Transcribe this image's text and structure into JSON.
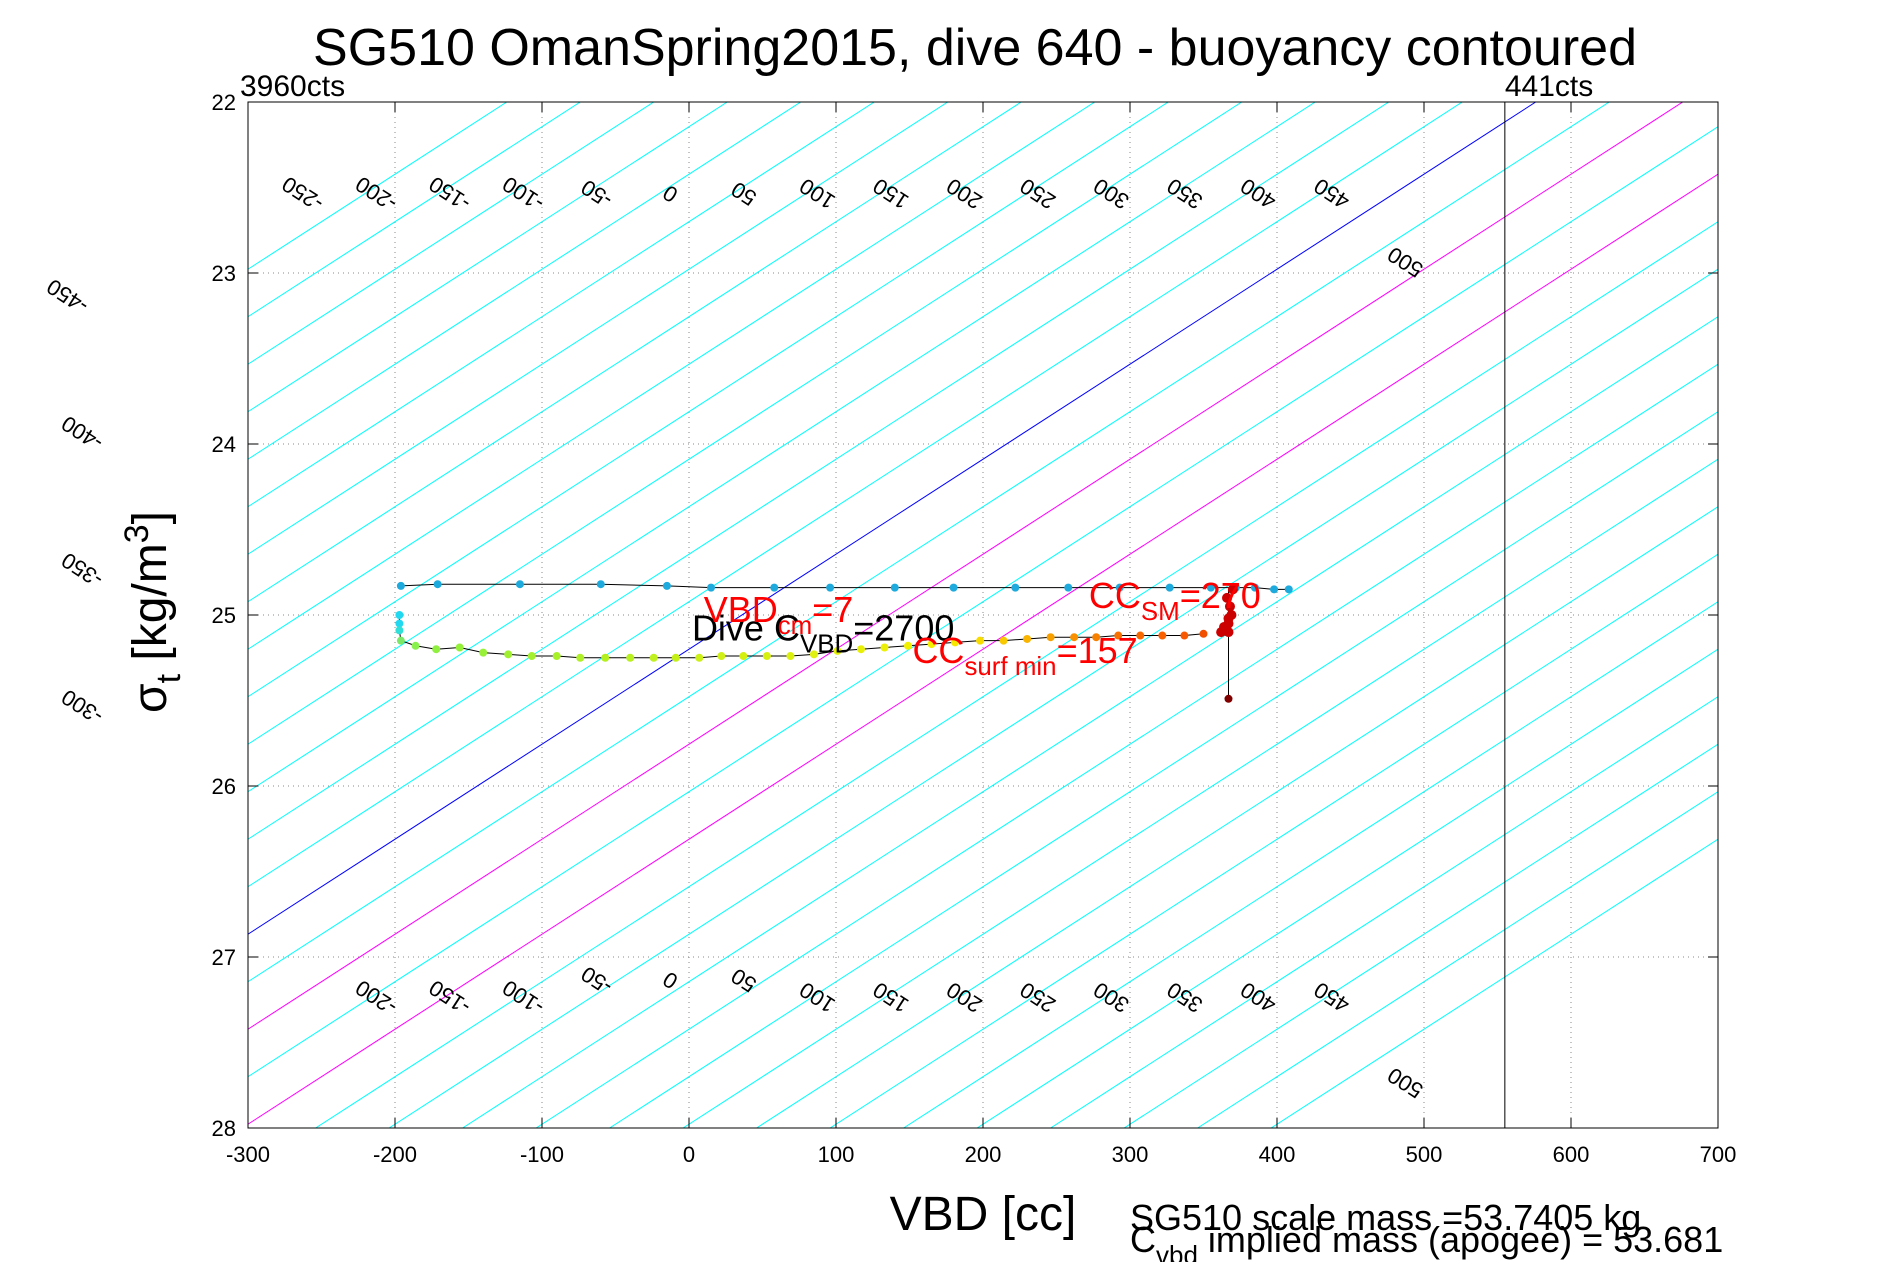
{
  "chart_data": {
    "type": "line",
    "title": "SG510 OmanSpring2015, dive 640 - buoyancy contoured",
    "xlabel": "VBD [cc]",
    "ylabel_main": "σ",
    "ylabel_sub": "t",
    "ylabel_unit_a": " [kg/m",
    "ylabel_unit_sup": "3",
    "ylabel_unit_b": "]",
    "xlim": [
      -300,
      700
    ],
    "ylim": [
      22,
      28
    ],
    "y_reversed": true,
    "grid": "dotted",
    "x_ticks": [
      "-300",
      "-200",
      "-100",
      "0",
      "100",
      "200",
      "300",
      "400",
      "500",
      "600",
      "700"
    ],
    "y_ticks": [
      "22",
      "23",
      "24",
      "25",
      "26",
      "27",
      "28"
    ],
    "count_lines": [
      {
        "label": "3960cts",
        "x": -300
      },
      {
        "label": "441cts",
        "x": 555
      }
    ],
    "contour_slope": 0.18,
    "contour_ref_sigma": 25.2,
    "contours": {
      "levels": [
        -450,
        -400,
        -350,
        -300,
        -250,
        -200,
        -150,
        -100,
        -50,
        0,
        50,
        100,
        150,
        200,
        250,
        300,
        350,
        400,
        450,
        500
      ],
      "top_labels": [
        {
          "text": "-250",
          "x": -260,
          "y": 22.5
        },
        {
          "text": "-200",
          "x": -210,
          "y": 22.5
        },
        {
          "text": "-150",
          "x": -160,
          "y": 22.5
        },
        {
          "text": "-100",
          "x": -110,
          "y": 22.5
        },
        {
          "text": "-50",
          "x": -60,
          "y": 22.5
        },
        {
          "text": "0",
          "x": -10,
          "y": 22.5
        },
        {
          "text": "50",
          "x": 40,
          "y": 22.5
        },
        {
          "text": "100",
          "x": 90,
          "y": 22.5
        },
        {
          "text": "150",
          "x": 140,
          "y": 22.5
        },
        {
          "text": "200",
          "x": 190,
          "y": 22.5
        },
        {
          "text": "250",
          "x": 240,
          "y": 22.5
        },
        {
          "text": "300",
          "x": 290,
          "y": 22.5
        },
        {
          "text": "350",
          "x": 340,
          "y": 22.5
        },
        {
          "text": "400",
          "x": 390,
          "y": 22.5
        },
        {
          "text": "450",
          "x": 440,
          "y": 22.5
        },
        {
          "text": "500",
          "x": 490,
          "y": 22.9
        }
      ],
      "left_labels": [
        {
          "text": "-450",
          "x": -420,
          "y": 23.1
        },
        {
          "text": "-400",
          "x": -410,
          "y": 23.9
        },
        {
          "text": "-350",
          "x": -410,
          "y": 24.7
        },
        {
          "text": "-300",
          "x": -410,
          "y": 25.5
        }
      ],
      "bottom_labels": [
        {
          "text": "-200",
          "x": -210,
          "y": 27.2
        },
        {
          "text": "-150",
          "x": -160,
          "y": 27.2
        },
        {
          "text": "-100",
          "x": -110,
          "y": 27.2
        },
        {
          "text": "-50",
          "x": -60,
          "y": 27.1
        },
        {
          "text": "0",
          "x": -10,
          "y": 27.1
        },
        {
          "text": "50",
          "x": 40,
          "y": 27.1
        },
        {
          "text": "100",
          "x": 90,
          "y": 27.2
        },
        {
          "text": "150",
          "x": 140,
          "y": 27.2
        },
        {
          "text": "200",
          "x": 190,
          "y": 27.2
        },
        {
          "text": "250",
          "x": 240,
          "y": 27.2
        },
        {
          "text": "300",
          "x": 290,
          "y": 27.2
        },
        {
          "text": "350",
          "x": 340,
          "y": 27.2
        },
        {
          "text": "400",
          "x": 390,
          "y": 27.2
        },
        {
          "text": "450",
          "x": 440,
          "y": 27.2
        },
        {
          "text": "500",
          "x": 490,
          "y": 27.7
        }
      ],
      "zero_level": 0,
      "magenta_levels": [
        100,
        200
      ],
      "colors": {
        "contour": "#00ffff",
        "zero": "#0000ff",
        "magenta": "#ff00ff"
      }
    },
    "series": [
      {
        "kind": "descent",
        "x": [
          -196,
          -171,
          -115,
          -60,
          -15,
          15,
          58,
          96,
          140,
          180,
          222,
          258,
          293,
          327,
          355,
          372,
          385,
          398,
          408
        ],
        "y": [
          24.83,
          24.82,
          24.82,
          24.82,
          24.83,
          24.84,
          24.84,
          24.84,
          24.84,
          24.84,
          24.84,
          24.84,
          24.84,
          24.84,
          24.84,
          24.84,
          24.84,
          24.85,
          24.85
        ],
        "color": "#1eaadc"
      },
      {
        "kind": "ascent",
        "x": [
          -197,
          -197,
          -197,
          -196,
          -186,
          -172,
          -156,
          -140,
          -123,
          -107,
          -90,
          -74,
          -57,
          -40,
          -24,
          -9,
          7,
          22,
          37,
          53,
          69,
          85,
          101,
          117,
          133,
          149,
          165,
          181,
          198,
          214,
          230,
          246,
          262,
          277,
          292,
          307,
          322,
          337,
          350
        ],
        "y": [
          25.0,
          25.05,
          25.09,
          25.15,
          25.18,
          25.2,
          25.19,
          25.22,
          25.23,
          25.24,
          25.24,
          25.25,
          25.25,
          25.25,
          25.25,
          25.25,
          25.25,
          25.24,
          25.24,
          25.24,
          25.24,
          25.23,
          25.21,
          25.2,
          25.19,
          25.18,
          25.17,
          25.16,
          25.15,
          25.15,
          25.14,
          25.13,
          25.13,
          25.13,
          25.12,
          25.12,
          25.12,
          25.12,
          25.11
        ],
        "colors": [
          "#22d8f0",
          "#22d8f0",
          "#30e0d8",
          "#7ce868",
          "#8af050",
          "#90f040",
          "#94f038",
          "#98f038",
          "#a0f030",
          "#a4f030",
          "#a8f028",
          "#b0f028",
          "#b4f020",
          "#b8f020",
          "#c0f020",
          "#c4f018",
          "#ccf018",
          "#d0f018",
          "#d4f010",
          "#d8f010",
          "#dcf010",
          "#e0f010",
          "#e4f008",
          "#e8f008",
          "#ecf008",
          "#f0f000",
          "#f4f000",
          "#f8e800",
          "#f8dc00",
          "#f8c800",
          "#f8b400",
          "#f8a000",
          "#f89000",
          "#f88000",
          "#f87000",
          "#f86800",
          "#f86000",
          "#f85800",
          "#f05000"
        ]
      }
    ],
    "surface_cluster": {
      "x": [
        362,
        365,
        367,
        369,
        368,
        366,
        370,
        367,
        364,
        367
      ],
      "y": [
        25.1,
        25.08,
        25.05,
        25.0,
        24.95,
        24.9,
        24.85,
        25.02,
        25.07,
        25.1
      ],
      "color": "#cc0000"
    },
    "surface_stem": {
      "x": 367,
      "y_top": 24.85,
      "y_bottom": 25.49,
      "color": "#800000"
    },
    "annotations": {
      "cc_sm": {
        "main": "CC",
        "sub": "SM",
        "tail": "=270",
        "x": 272,
        "y": 24.96,
        "color": "#ff0000"
      },
      "vbd_cm": {
        "main": "VBD",
        "sub": "cm",
        "tail": "=7",
        "x": 10,
        "y": 25.04,
        "color": "#ff0000"
      },
      "dive_c": {
        "main": "Dive C",
        "sub": "VBD",
        "tail": "=2700",
        "x": 2,
        "y": 25.15,
        "color": "#000000"
      },
      "cc_surf": {
        "main": "CC",
        "sub": "surf min",
        "tail": "=157",
        "x": 152,
        "y": 25.28,
        "color": "#ff0000"
      }
    },
    "footer": {
      "line1": "SG510 scale mass =53.7405 kg",
      "line2_main": "C",
      "line2_sub": "vbd",
      "line2_tail": " implied mass (apogee) = 53.681"
    }
  }
}
